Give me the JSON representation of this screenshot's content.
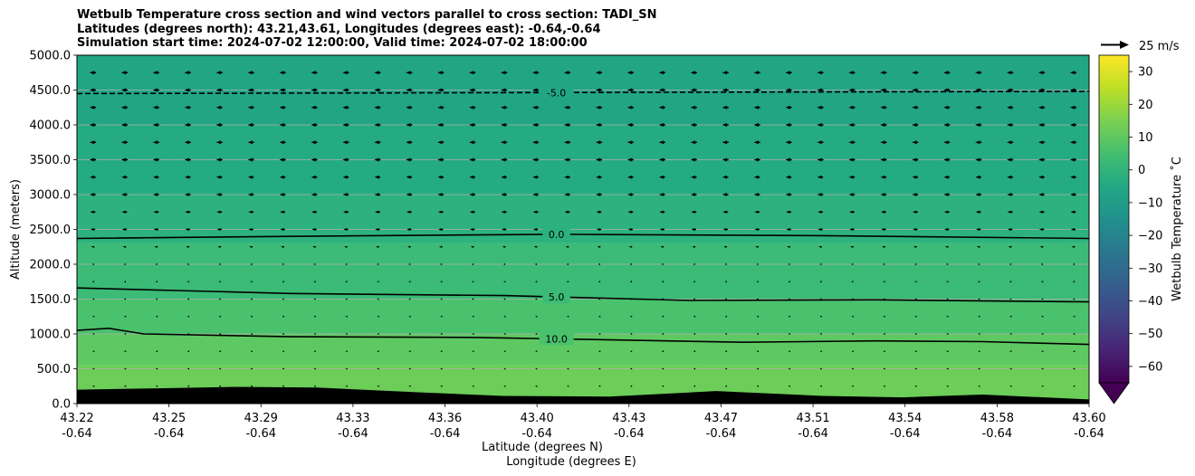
{
  "title_lines": [
    "Wetbulb Temperature cross section and wind vectors parallel to cross section: TADI_SN",
    "Latitudes (degrees north): 43.21,43.61, Longitudes (degrees east): -0.64,-0.64",
    "Simulation start time: 2024-07-02 12:00:00, Valid time: 2024-07-02 18:00:00"
  ],
  "chart_data": {
    "type": "heatmap",
    "ylabel": "Altitude (meters)",
    "xlabel_line1": "Latitude (degrees N)",
    "xlabel_line2": "Longitude (degrees E)",
    "ylim": [
      0,
      5000
    ],
    "y_ticks": [
      "0.0",
      "500.0",
      "1000.0",
      "1500.0",
      "2000.0",
      "2500.0",
      "3000.0",
      "3500.0",
      "4000.0",
      "4500.0",
      "5000.0"
    ],
    "y_tick_values": [
      0,
      500,
      1000,
      1500,
      2000,
      2500,
      3000,
      3500,
      4000,
      4500,
      5000
    ],
    "x_lat": [
      43.22,
      43.6
    ],
    "x_ticks": [
      {
        "lat": "43.22",
        "lon": "-0.64"
      },
      {
        "lat": "43.25",
        "lon": "-0.64"
      },
      {
        "lat": "43.29",
        "lon": "-0.64"
      },
      {
        "lat": "43.33",
        "lon": "-0.64"
      },
      {
        "lat": "43.36",
        "lon": "-0.64"
      },
      {
        "lat": "43.40",
        "lon": "-0.64"
      },
      {
        "lat": "43.43",
        "lon": "-0.64"
      },
      {
        "lat": "43.47",
        "lon": "-0.64"
      },
      {
        "lat": "43.51",
        "lon": "-0.64"
      },
      {
        "lat": "43.54",
        "lon": "-0.64"
      },
      {
        "lat": "43.58",
        "lon": "-0.64"
      },
      {
        "lat": "43.60",
        "lon": "-0.64"
      }
    ],
    "grid": "horizontal",
    "temperature_bands": [
      {
        "from": 0,
        "to": 550,
        "color": "#6ccd59"
      },
      {
        "from": 550,
        "to": 1000,
        "color": "#5ec962"
      },
      {
        "from": 1000,
        "to": 1500,
        "color": "#4ac16d"
      },
      {
        "from": 1500,
        "to": 2300,
        "color": "#3bbb75"
      },
      {
        "from": 2300,
        "to": 3000,
        "color": "#2db27d"
      },
      {
        "from": 3000,
        "to": 4000,
        "color": "#25ab82"
      },
      {
        "from": 4000,
        "to": 5000,
        "color": "#21a585"
      }
    ],
    "contours": [
      {
        "label": "-5.0",
        "style": "dashed",
        "lat": [
          43.22,
          43.6
        ],
        "alt": [
          4450,
          4480
        ]
      },
      {
        "label": "0.0",
        "style": "solid",
        "lat": [
          43.22,
          43.3,
          43.4,
          43.5,
          43.6
        ],
        "alt": [
          2370,
          2400,
          2430,
          2410,
          2370
        ]
      },
      {
        "label": "5.0",
        "style": "solid",
        "lat": [
          43.22,
          43.27,
          43.3,
          43.38,
          43.45,
          43.52,
          43.6
        ],
        "alt": [
          1660,
          1610,
          1580,
          1550,
          1480,
          1490,
          1460
        ]
      },
      {
        "label": "10.0",
        "style": "solid",
        "lat": [
          43.22,
          43.232,
          43.245,
          43.3,
          43.37,
          43.47,
          43.52,
          43.56,
          43.6
        ],
        "alt": [
          1050,
          1080,
          1000,
          960,
          950,
          880,
          900,
          890,
          850
        ]
      }
    ],
    "terrain_alt": {
      "lat": [
        43.22,
        43.25,
        43.28,
        43.31,
        43.35,
        43.38,
        43.42,
        43.46,
        43.5,
        43.53,
        43.56,
        43.6
      ],
      "alt": [
        200,
        220,
        240,
        230,
        160,
        110,
        100,
        180,
        110,
        90,
        130,
        60
      ]
    },
    "wind": {
      "direction": "southward (toward lower latitude)",
      "rows": [
        {
          "alt": 250,
          "speed_ms": 1.5
        },
        {
          "alt": 500,
          "speed_ms": 1.5
        },
        {
          "alt": 750,
          "speed_ms": 1.5
        },
        {
          "alt": 1000,
          "speed_ms": 1.5
        },
        {
          "alt": 1250,
          "speed_ms": 1.5
        },
        {
          "alt": 1500,
          "speed_ms": 2
        },
        {
          "alt": 1750,
          "speed_ms": 2
        },
        {
          "alt": 2000,
          "speed_ms": 2.5
        },
        {
          "alt": 2250,
          "speed_ms": 6
        },
        {
          "alt": 2500,
          "speed_ms": 9
        },
        {
          "alt": 2750,
          "speed_ms": 10
        },
        {
          "alt": 3000,
          "speed_ms": 11
        },
        {
          "alt": 3250,
          "speed_ms": 11
        },
        {
          "alt": 3500,
          "speed_ms": 12
        },
        {
          "alt": 3750,
          "speed_ms": 12
        },
        {
          "alt": 4000,
          "speed_ms": 12
        },
        {
          "alt": 4250,
          "speed_ms": 12
        },
        {
          "alt": 4500,
          "speed_ms": 12
        },
        {
          "alt": 4750,
          "speed_ms": 12
        }
      ],
      "columns": 32,
      "reference_label": "25 m/s",
      "reference_speed_ms": 25
    },
    "colorbar": {
      "label": "Wetbulb Temperature $^\\circ$C",
      "label_display": "Wetbulb Temperature ˚C",
      "range": [
        -65,
        35
      ],
      "ticks": [
        "30",
        "20",
        "10",
        "0",
        "−10",
        "−20",
        "−30",
        "−40",
        "−50",
        "−60"
      ],
      "tick_values": [
        30,
        20,
        10,
        0,
        -10,
        -20,
        -30,
        -40,
        -50,
        -60
      ],
      "extend": "min",
      "colormap": "viridis"
    }
  }
}
